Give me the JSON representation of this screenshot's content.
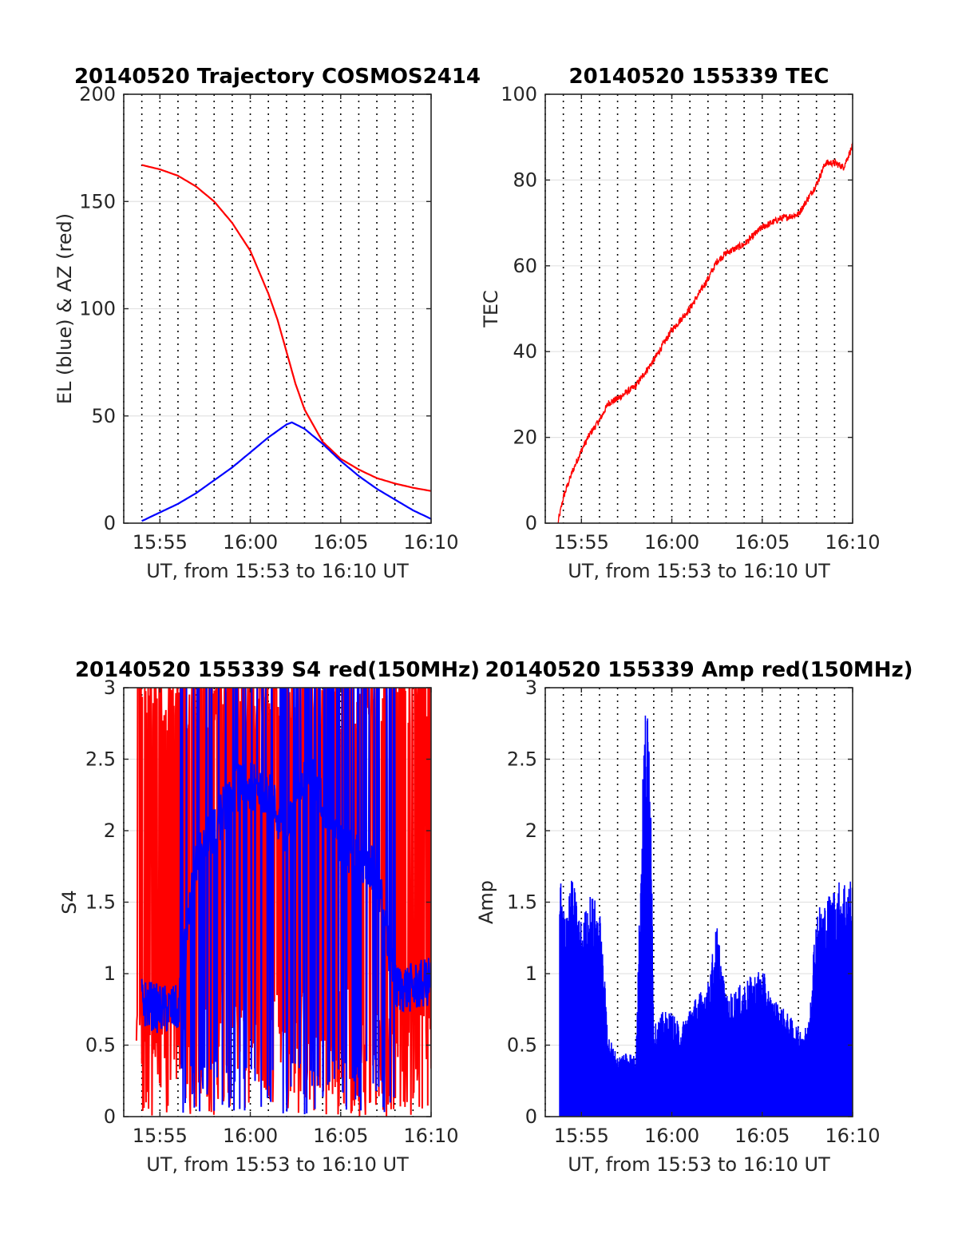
{
  "chart_data": [
    {
      "type": "line",
      "title": "20140520 Trajectory COSMOS2414",
      "xlabel": "UT, from 15:53 to 16:10 UT",
      "ylabel": "EL (blue) & AZ (red)",
      "xlim": [
        "15:53",
        "16:10"
      ],
      "ylim": [
        0,
        200
      ],
      "xticks": [
        "15:55",
        "16:00",
        "16:05",
        "16:10"
      ],
      "yticks": [
        "0",
        "50",
        "100",
        "150",
        "200"
      ],
      "ygrid": true,
      "xgrid_dotted_each_minute": true,
      "series": [
        {
          "color": "#ff0000",
          "x": [
            "15:54",
            "15:55",
            "15:56",
            "15:57",
            "15:58",
            "15:59",
            "16:00",
            "16:01",
            "16:01.5",
            "16:02",
            "16:02.5",
            "16:03",
            "16:04",
            "16:05",
            "16:06",
            "16:07",
            "16:08",
            "16:09",
            "16:10"
          ],
          "values": [
            167,
            165,
            162,
            157,
            150,
            140,
            127,
            107,
            95,
            80,
            65,
            53,
            38,
            30,
            25,
            21,
            18.5,
            16.5,
            15
          ]
        },
        {
          "color": "#0000ff",
          "x": [
            "15:54",
            "15:55",
            "15:56",
            "15:57",
            "15:58",
            "15:59",
            "16:00",
            "16:01",
            "16:02",
            "16:02.3",
            "16:03",
            "16:04",
            "16:05",
            "16:06",
            "16:07",
            "16:08",
            "16:09",
            "16:10"
          ],
          "values": [
            1,
            5,
            9,
            14,
            20,
            26,
            33,
            40,
            46,
            47,
            44,
            37,
            29,
            22,
            16,
            11,
            6,
            2
          ]
        }
      ]
    },
    {
      "type": "line",
      "title": "20140520 155339 TEC",
      "xlabel": "UT, from 15:53 to 16:10 UT",
      "ylabel": "TEC",
      "xlim": [
        "15:53",
        "16:10"
      ],
      "ylim": [
        0,
        100
      ],
      "xticks": [
        "15:55",
        "16:00",
        "16:05",
        "16:10"
      ],
      "yticks": [
        "0",
        "20",
        "40",
        "60",
        "80",
        "100"
      ],
      "ygrid": true,
      "series": [
        {
          "color": "#ff0000",
          "x": [
            "15:53.7",
            "15:54",
            "15:54.5",
            "15:55",
            "15:55.5",
            "15:56",
            "15:56.5",
            "15:57",
            "15:58",
            "15:59",
            "16:00",
            "16:01",
            "16:02",
            "16:02.5",
            "16:03",
            "16:04",
            "16:05",
            "16:06",
            "16:07",
            "16:08",
            "16:08.5",
            "16:09",
            "16:09.5",
            "16:10"
          ],
          "values": [
            0,
            6,
            12,
            17,
            21,
            24,
            28,
            29,
            32,
            38,
            45,
            50,
            57,
            61,
            63,
            65,
            69,
            71,
            72,
            79,
            84,
            84,
            83,
            88
          ]
        }
      ]
    },
    {
      "type": "line",
      "title": "20140520 155339 S4 red(150MHz)",
      "xlabel": "UT, from 15:53 to 16:10 UT",
      "ylabel": "S4",
      "xlim": [
        "15:53",
        "16:10"
      ],
      "ylim": [
        0,
        3
      ],
      "xticks": [
        "15:55",
        "16:00",
        "16:05",
        "16:10"
      ],
      "yticks": [
        "0",
        "0.5",
        "1",
        "1.5",
        "2",
        "2.5",
        "3"
      ],
      "ygrid": true,
      "series": [
        {
          "color": "#ff0000",
          "x_range": [
            "15:53.7",
            "16:10"
          ],
          "typical_range": [
            0,
            3
          ]
        },
        {
          "color": "#0000ff",
          "x": [
            "15:54",
            "15:55",
            "15:56",
            "15:57",
            "15:58",
            "15:59",
            "16:00",
            "16:01",
            "16:02",
            "16:03",
            "16:04",
            "16:05",
            "16:06",
            "16:07",
            "16:08",
            "16:09",
            "16:10"
          ],
          "values": [
            0.8,
            0.75,
            0.75,
            1.8,
            2.0,
            2.3,
            2.3,
            2.3,
            1.9,
            2.5,
            2.2,
            1.9,
            1.8,
            1.7,
            0.9,
            0.9,
            0.95
          ]
        }
      ]
    },
    {
      "type": "bar",
      "title": "20140520 155339 Amp red(150MHz)",
      "xlabel": "UT, from 15:53 to 16:10 UT",
      "ylabel": "Amp",
      "xlim": [
        "15:53",
        "16:10"
      ],
      "ylim": [
        0,
        3
      ],
      "xticks": [
        "15:55",
        "16:00",
        "16:05",
        "16:10"
      ],
      "yticks": [
        "0",
        "0.5",
        "1",
        "1.5",
        "2",
        "2.5",
        "3"
      ],
      "ygrid": true,
      "series": [
        {
          "color": "#0000ff",
          "x": [
            "15:53.8",
            "15:54",
            "15:54.5",
            "15:55",
            "15:55.5",
            "15:56",
            "15:56.5",
            "15:57",
            "15:57.5",
            "15:58",
            "15:58.5",
            "15:58.8",
            "15:59",
            "15:59.5",
            "16:00",
            "16:00.5",
            "16:01",
            "16:02",
            "16:02.5",
            "16:03",
            "16:04",
            "16:05",
            "16:05.5",
            "16:06",
            "16:07",
            "16:07.5",
            "16:08",
            "16:08.5",
            "16:09",
            "16:09.5",
            "16:10"
          ],
          "values": [
            1.7,
            1.4,
            1.6,
            1.3,
            1.5,
            1.4,
            0.55,
            0.4,
            0.45,
            0.4,
            2.75,
            2.7,
            0.6,
            0.7,
            0.7,
            0.6,
            0.75,
            0.9,
            1.3,
            0.8,
            0.9,
            1.0,
            0.8,
            0.75,
            0.6,
            0.6,
            1.4,
            1.45,
            1.55,
            1.6,
            1.6
          ]
        }
      ]
    }
  ]
}
